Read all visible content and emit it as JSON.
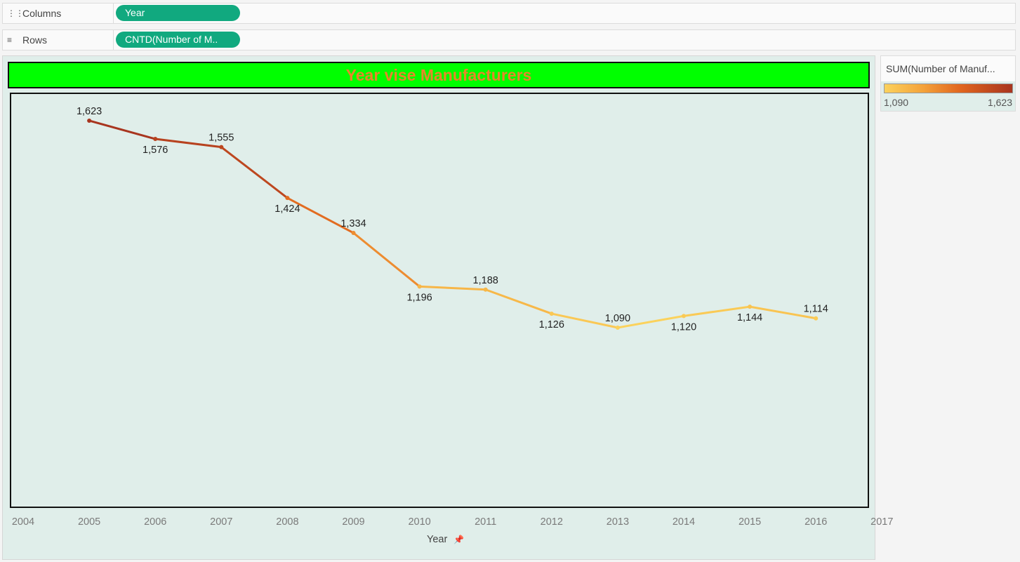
{
  "shelves": {
    "columns": {
      "label": "Columns",
      "icon": "columns-icon",
      "pill": "Year"
    },
    "rows": {
      "label": "Rows",
      "icon": "rows-icon",
      "pill": "CNTD(Number of M.."
    }
  },
  "colors": {
    "title_bg": "#00ff00",
    "title_text": "#e8862a",
    "plot_bg": "#e0eeea",
    "ramp": [
      "#fbd25c",
      "#f4a33a",
      "#e0651e",
      "#a8351f"
    ]
  },
  "legend": {
    "title": "SUM(Number of Manuf...",
    "min_label": "1,090",
    "max_label": "1,623",
    "min": 1090,
    "max": 1623
  },
  "chart_data": {
    "type": "line",
    "title": "Year vise Manufacturers",
    "xlabel": "Year",
    "ylabel": "",
    "x_ticks": [
      "2004",
      "2005",
      "2006",
      "2007",
      "2008",
      "2009",
      "2010",
      "2011",
      "2012",
      "2013",
      "2014",
      "2015",
      "2016",
      "2017"
    ],
    "xlim": [
      2004,
      2017
    ],
    "series": [
      {
        "x": [
          2005,
          2006,
          2007,
          2008,
          2009,
          2010,
          2011,
          2012,
          2013,
          2014,
          2015,
          2016
        ],
        "values": [
          1623,
          1576,
          1555,
          1424,
          1334,
          1196,
          1188,
          1126,
          1090,
          1120,
          1144,
          1114
        ],
        "labels": [
          "1,623",
          "1,576",
          "1,555",
          "1,424",
          "1,334",
          "1,196",
          "1,188",
          "1,126",
          "1,090",
          "1,120",
          "1,144",
          "1,114"
        ],
        "label_position": [
          "above",
          "below",
          "above",
          "below",
          "above",
          "below",
          "above",
          "below",
          "above",
          "below",
          "below",
          "above"
        ]
      }
    ],
    "legend": "right"
  }
}
